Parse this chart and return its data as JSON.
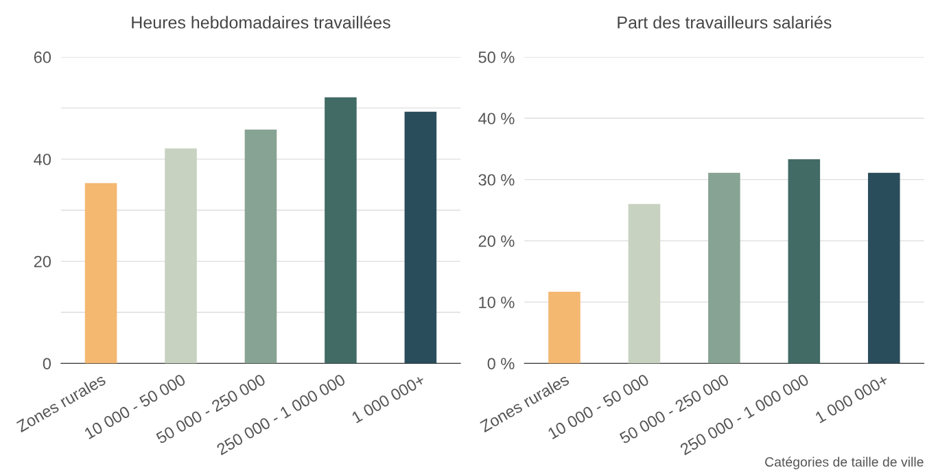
{
  "chart_data": [
    {
      "type": "bar",
      "title": "Heures hebdomadaires travaillées",
      "categories": [
        "Zones rurales",
        "10 000 - 50 000",
        "50 000 - 250 000",
        "250 000 - 1 000 000",
        "1 000 000+"
      ],
      "values": [
        35.3,
        42.1,
        45.8,
        52.1,
        49.3
      ],
      "colors": [
        "#f4b870",
        "#c7d2c1",
        "#87a393",
        "#426b66",
        "#2a4d5c"
      ],
      "ylim": [
        0,
        60
      ],
      "yticks": [
        0,
        {
          "value": 10,
          "label": null
        },
        20,
        {
          "value": 30,
          "label": null
        },
        40,
        {
          "value": 50,
          "label": null
        },
        60
      ],
      "grid": "y"
    },
    {
      "type": "bar",
      "title": "Part des travailleurs salariés",
      "categories": [
        "Zones rurales",
        "10 000 - 50 000",
        "50 000 - 250 000",
        "250 000 - 1 000 000",
        "1 000 000+"
      ],
      "values": [
        11.7,
        26.0,
        31.1,
        33.3,
        31.1
      ],
      "colors": [
        "#f4b870",
        "#c7d2c1",
        "#87a393",
        "#426b66",
        "#2a4d5c"
      ],
      "ylim": [
        0,
        50
      ],
      "yticks": [
        {
          "value": 0,
          "label": "0 %"
        },
        {
          "value": 10,
          "label": "10 %"
        },
        {
          "value": 20,
          "label": "20 %"
        },
        {
          "value": 30,
          "label": "30 %"
        },
        {
          "value": 40,
          "label": "40 %"
        },
        {
          "value": 50,
          "label": "50 %"
        }
      ],
      "grid": "y",
      "annotations": [
        "Catégories de taille de ville"
      ]
    }
  ]
}
